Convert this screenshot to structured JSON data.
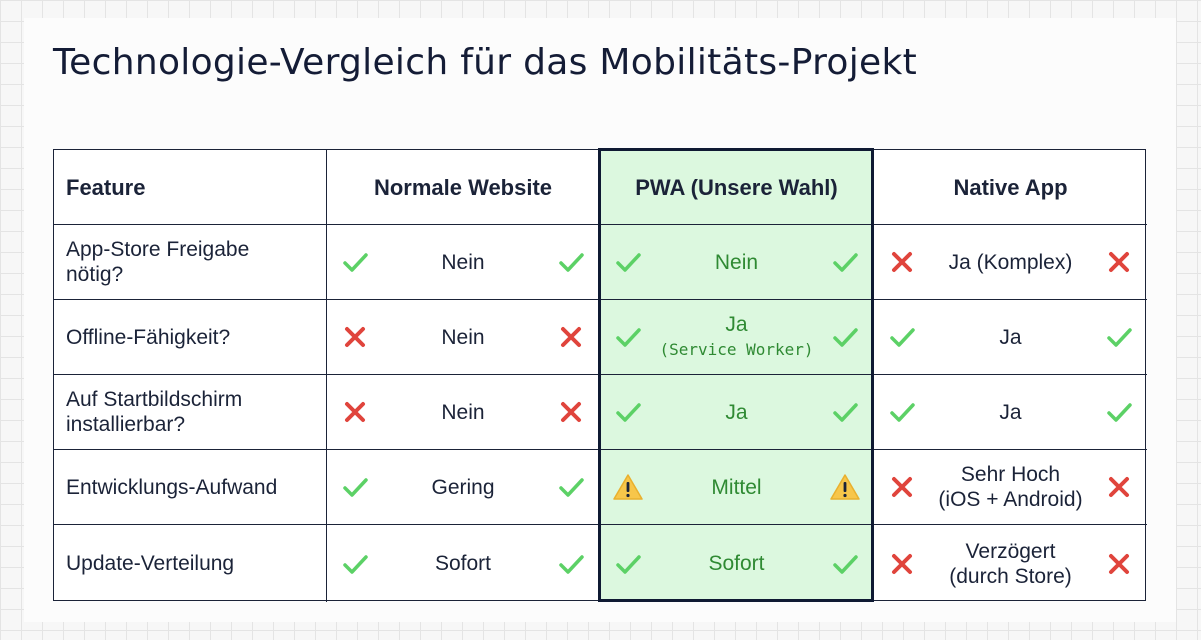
{
  "title": "Technologie-Vergleich für das Mobilitäts-Projekt",
  "table": {
    "header": [
      "Feature",
      "Normale Website",
      "PWA (Unsere Wahl)",
      "Native App"
    ],
    "rows": [
      [
        [
          "App-Store Freigabe",
          "nötig?"
        ],
        [
          "Nein"
        ],
        [
          "Nein"
        ],
        [
          "Ja (Komplex)"
        ]
      ],
      [
        [
          "Offline-Fähigkeit?"
        ],
        [
          "Nein"
        ],
        [
          "Ja",
          "(Service Worker)"
        ],
        [
          "Ja"
        ]
      ],
      [
        [
          "Auf Startbildschirm",
          "installierbar?"
        ],
        [
          "Nein"
        ],
        [
          "Ja"
        ],
        [
          "Ja"
        ]
      ],
      [
        [
          "Entwicklungs-Aufwand"
        ],
        [
          "Gering"
        ],
        [
          "Mittel"
        ],
        [
          "Sehr Hoch",
          "(iOS + Android)"
        ]
      ],
      [
        [
          "Update-Verteilung"
        ],
        [
          "Sofort"
        ],
        [
          "Sofort"
        ],
        [
          "Verzögert",
          "(durch Store)"
        ]
      ]
    ]
  }
}
